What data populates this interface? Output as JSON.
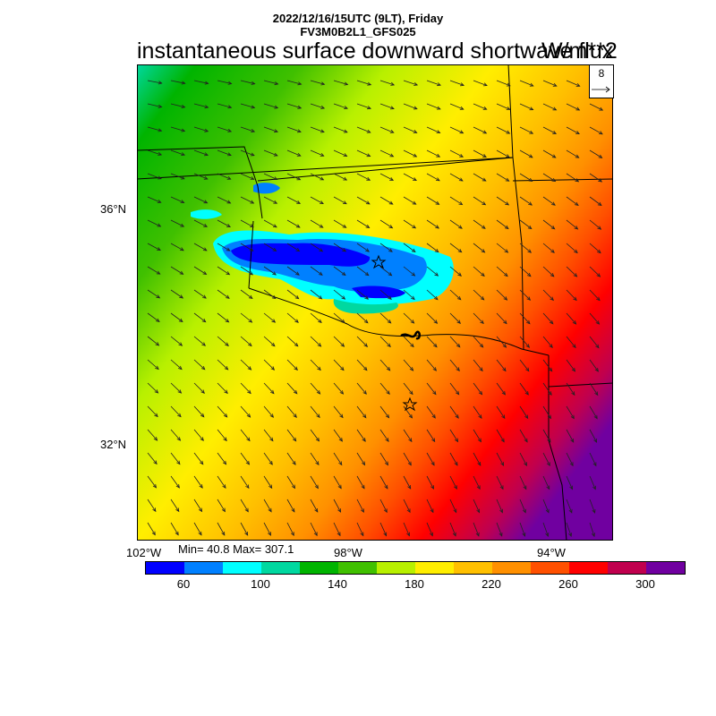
{
  "header": {
    "datetime": "2022/12/16/15UTC (9LT), Friday",
    "model": "FV3M0B2L1_GFS025"
  },
  "plot": {
    "title": "instantaneous surface downward shortwave flux",
    "units": "W/m**2"
  },
  "axes": {
    "lat_labels": [
      "36°N",
      "32°N"
    ],
    "lon_labels": [
      "102°W",
      "98°W",
      "94°W"
    ]
  },
  "stats": {
    "text": "Min= 40.8 Max= 307.1",
    "min": 40.8,
    "max": 307.1
  },
  "wind_reference": {
    "value": "8"
  },
  "colorbar": {
    "colors": [
      "#0000ff",
      "#0080ff",
      "#00ffff",
      "#00d8a0",
      "#00b400",
      "#40c000",
      "#b8f000",
      "#ffee00",
      "#ffc000",
      "#ff9000",
      "#ff5000",
      "#ff0000",
      "#c0004e",
      "#7000a0"
    ],
    "labels": [
      "60",
      "100",
      "140",
      "180",
      "220",
      "260",
      "300"
    ]
  },
  "map": {
    "markers": [
      "star-marker",
      "star-marker"
    ],
    "region": "Oklahoma / Texas"
  }
}
